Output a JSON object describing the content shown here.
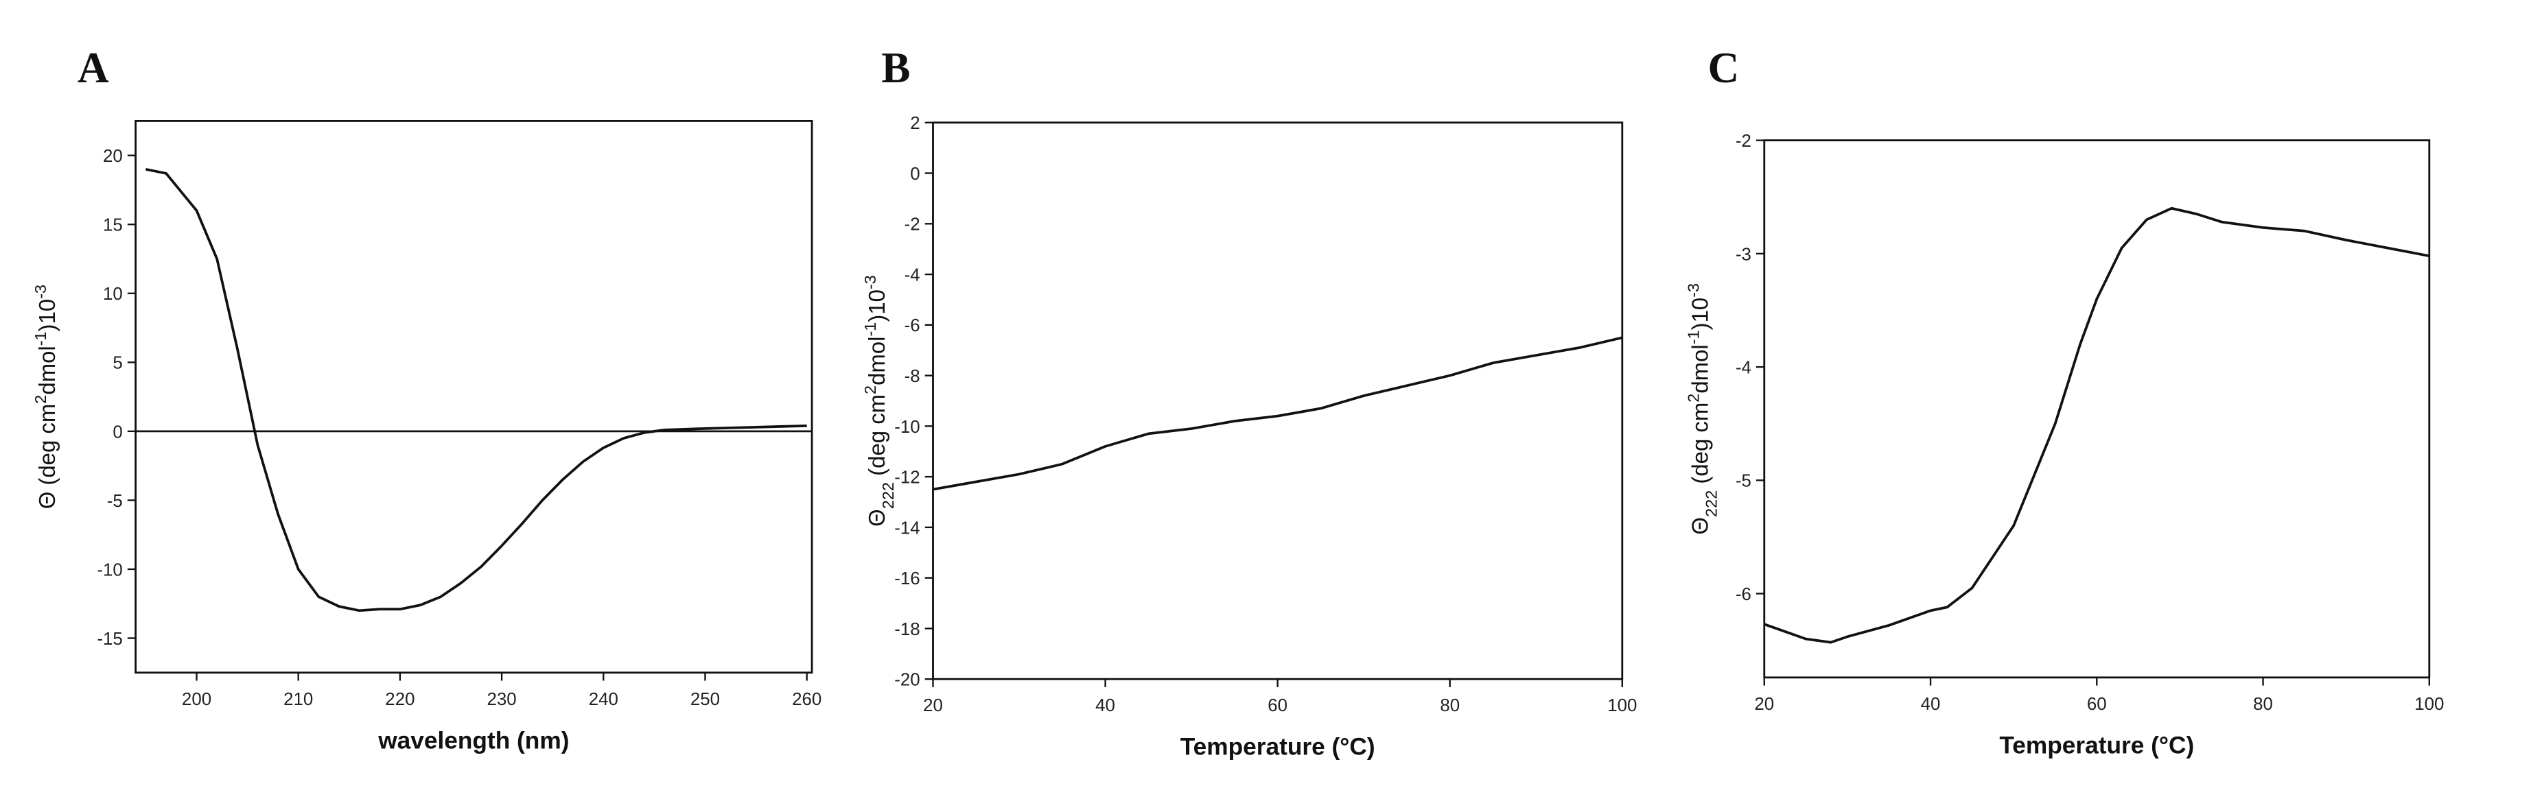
{
  "chart_data": [
    {
      "type": "line",
      "panel_label": "A",
      "x_label": "wavelength (nm)",
      "y_label_parts": [
        {
          "text": "Θ (deg cm"
        },
        {
          "text": "2",
          "script": "super"
        },
        {
          "text": "dmol"
        },
        {
          "text": "-1",
          "script": "super"
        },
        {
          "text": ")10"
        },
        {
          "text": "-3",
          "script": "super"
        }
      ],
      "x": [
        195,
        197,
        200,
        202,
        204,
        205,
        206,
        208,
        210,
        212,
        214,
        216,
        218,
        220,
        222,
        224,
        226,
        228,
        230,
        232,
        234,
        236,
        238,
        240,
        242,
        244,
        246,
        248,
        250,
        255,
        260
      ],
      "series": [
        {
          "color": "#111111",
          "values": [
            19,
            18.7,
            16,
            12.5,
            6,
            2.5,
            -1,
            -6,
            -10,
            -12,
            -12.7,
            -13,
            -12.9,
            -12.9,
            -12.6,
            -12,
            -11,
            -9.8,
            -8.3,
            -6.7,
            -5,
            -3.5,
            -2.2,
            -1.2,
            -0.5,
            -0.1,
            0.1,
            0.15,
            0.2,
            0.3,
            0.4
          ]
        }
      ],
      "xlim": [
        194,
        260.5
      ],
      "ylim": [
        -17.5,
        22.5
      ],
      "xticks": [
        200,
        210,
        220,
        230,
        240,
        250,
        260
      ],
      "yticks": [
        -15,
        -10,
        -5,
        0,
        5,
        10,
        15,
        20
      ],
      "zero_line": true
    },
    {
      "type": "line",
      "panel_label": "B",
      "x_label": "Temperature (°C)",
      "y_label_parts": [
        {
          "text": "Θ"
        },
        {
          "text": "222",
          "script": "sub"
        },
        {
          "text": " (deg cm"
        },
        {
          "text": "2",
          "script": "super"
        },
        {
          "text": "dmol"
        },
        {
          "text": "-1",
          "script": "super"
        },
        {
          "text": ")10"
        },
        {
          "text": "-3",
          "script": "super"
        }
      ],
      "x": [
        20,
        25,
        30,
        35,
        40,
        45,
        50,
        55,
        60,
        65,
        70,
        75,
        80,
        85,
        90,
        95,
        100
      ],
      "series": [
        {
          "color": "#111111",
          "values": [
            -12.5,
            -12.2,
            -11.9,
            -11.5,
            -10.8,
            -10.3,
            -10.1,
            -9.8,
            -9.6,
            -9.3,
            -8.8,
            -8.4,
            -8,
            -7.5,
            -7.2,
            -6.9,
            -6.5
          ]
        }
      ],
      "xlim": [
        20,
        100
      ],
      "ylim": [
        -20,
        2
      ],
      "xticks": [
        20,
        40,
        60,
        80,
        100
      ],
      "yticks": [
        -20,
        -18,
        -16,
        -14,
        -12,
        -10,
        -8,
        -6,
        -4,
        -2,
        0,
        2
      ]
    },
    {
      "type": "line",
      "panel_label": "C",
      "x_label": "Temperature (°C)",
      "y_label_parts": [
        {
          "text": "Θ"
        },
        {
          "text": "222",
          "script": "sub"
        },
        {
          "text": " (deg cm"
        },
        {
          "text": "2",
          "script": "super"
        },
        {
          "text": "dmol"
        },
        {
          "text": "-1",
          "script": "super"
        },
        {
          "text": ")10"
        },
        {
          "text": "-3",
          "script": "super"
        }
      ],
      "x": [
        20,
        25,
        28,
        30,
        35,
        40,
        42,
        45,
        50,
        55,
        58,
        60,
        63,
        66,
        69,
        72,
        75,
        80,
        85,
        90,
        95,
        100
      ],
      "series": [
        {
          "color": "#111111",
          "values": [
            -6.27,
            -6.4,
            -6.43,
            -6.38,
            -6.28,
            -6.15,
            -6.12,
            -5.95,
            -5.4,
            -4.5,
            -3.8,
            -3.4,
            -2.95,
            -2.7,
            -2.6,
            -2.65,
            -2.72,
            -2.77,
            -2.8,
            -2.88,
            -2.95,
            -3.02
          ]
        }
      ],
      "xlim": [
        20,
        100
      ],
      "ylim": [
        -6.74,
        -2
      ],
      "xticks": [
        20,
        40,
        60,
        80,
        100
      ],
      "yticks": [
        -6,
        -5,
        -4,
        -3,
        -2
      ]
    }
  ]
}
